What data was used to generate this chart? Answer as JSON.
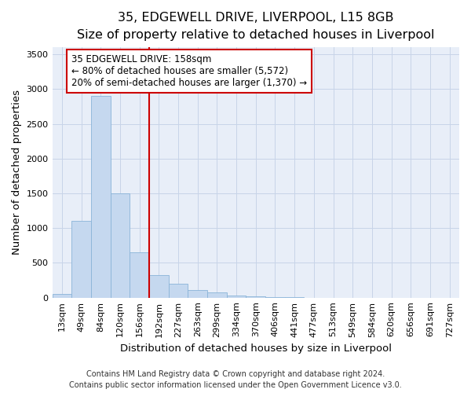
{
  "title_line1": "35, EDGEWELL DRIVE, LIVERPOOL, L15 8GB",
  "title_line2": "Size of property relative to detached houses in Liverpool",
  "xlabel": "Distribution of detached houses by size in Liverpool",
  "ylabel": "Number of detached properties",
  "categories": [
    "13sqm",
    "49sqm",
    "84sqm",
    "120sqm",
    "156sqm",
    "192sqm",
    "227sqm",
    "263sqm",
    "299sqm",
    "334sqm",
    "370sqm",
    "406sqm",
    "441sqm",
    "477sqm",
    "513sqm",
    "549sqm",
    "584sqm",
    "620sqm",
    "656sqm",
    "691sqm",
    "727sqm"
  ],
  "values": [
    50,
    1100,
    2900,
    1500,
    650,
    325,
    200,
    110,
    80,
    35,
    20,
    8,
    5,
    2,
    0,
    0,
    0,
    0,
    0,
    0,
    0
  ],
  "bar_color": "#c5d8ef",
  "bar_edge_color": "#8ab4d8",
  "bar_linewidth": 0.6,
  "vline_x": 4.5,
  "vline_color": "#cc0000",
  "vline_linewidth": 1.5,
  "annotation_text": "35 EDGEWELL DRIVE: 158sqm\n← 80% of detached houses are smaller (5,572)\n20% of semi-detached houses are larger (1,370) →",
  "annotation_box_color": "white",
  "annotation_box_edge": "#cc0000",
  "ylim": [
    0,
    3600
  ],
  "yticks": [
    0,
    500,
    1000,
    1500,
    2000,
    2500,
    3000,
    3500
  ],
  "grid_color": "#c8d4e8",
  "bg_color": "#e8eef8",
  "footer_line1": "Contains HM Land Registry data © Crown copyright and database right 2024.",
  "footer_line2": "Contains public sector information licensed under the Open Government Licence v3.0.",
  "title_fontsize": 11.5,
  "subtitle_fontsize": 10,
  "axis_label_fontsize": 9.5,
  "tick_fontsize": 8,
  "annotation_fontsize": 8.5,
  "footer_fontsize": 7
}
